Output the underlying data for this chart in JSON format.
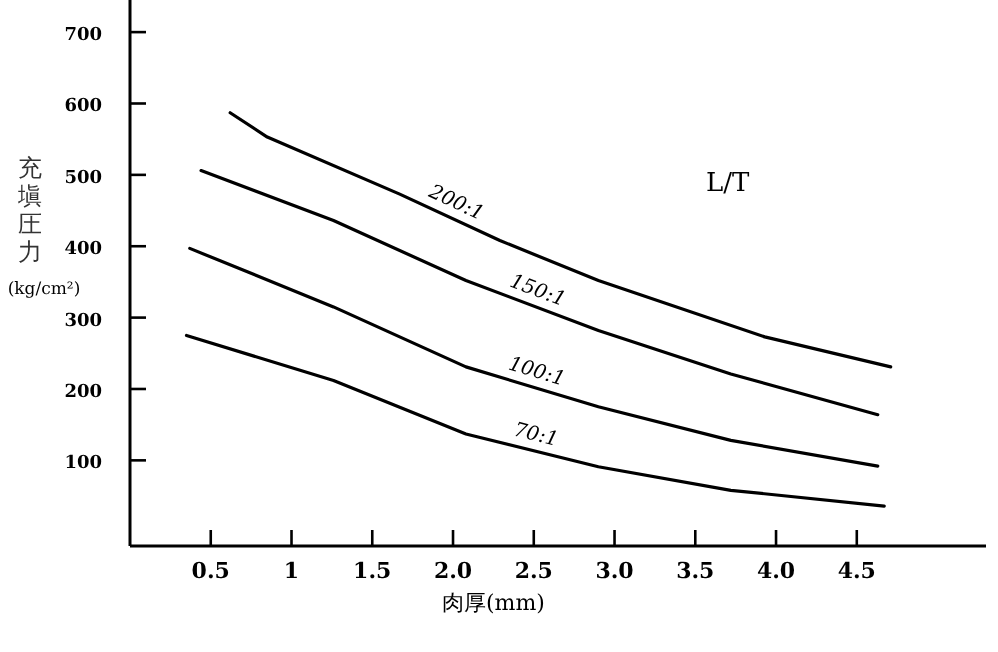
{
  "chart_data": {
    "type": "line",
    "xlabel": "肉厚(mm)",
    "ylabel": "充塡圧力(kg/cm²)",
    "annotations": [
      "L/T"
    ],
    "xlim": [
      0,
      5.3
    ],
    "ylim": [
      -20,
      745
    ],
    "xticks": [
      0.5,
      {
        "value": 1,
        "label": "1"
      },
      1.5,
      {
        "value": 2,
        "label": "2.0"
      },
      2.5,
      {
        "value": 3,
        "label": "3.0"
      },
      3.5,
      {
        "value": 4,
        "label": "4.0"
      },
      4.5
    ],
    "yticks": [
      100,
      200,
      300,
      400,
      500,
      600,
      700
    ],
    "grid": false,
    "legend": false,
    "marker": "none",
    "line_style": "solid",
    "series": [
      {
        "name": "200:1",
        "color": "#000000",
        "x": [
          0.62,
          0.85,
          1.67,
          2.29,
          2.9,
          3.93,
          4.71
        ],
        "values": [
          587,
          553,
          473,
          408,
          352,
          273,
          231
        ]
      },
      {
        "name": "150:1",
        "color": "#000000",
        "x": [
          0.44,
          1.26,
          2.08,
          2.9,
          3.72,
          4.63
        ],
        "values": [
          506,
          436,
          352,
          282,
          221,
          164
        ]
      },
      {
        "name": "100:1",
        "color": "#000000",
        "x": [
          0.37,
          1.26,
          2.08,
          2.9,
          3.72,
          4.63
        ],
        "values": [
          397,
          315,
          231,
          175,
          128,
          92
        ]
      },
      {
        "name": "70:1",
        "color": "#000000",
        "x": [
          0.35,
          1.26,
          2.08,
          2.9,
          3.72,
          4.67
        ],
        "values": [
          275,
          212,
          137,
          91,
          58,
          36
        ]
      }
    ]
  }
}
